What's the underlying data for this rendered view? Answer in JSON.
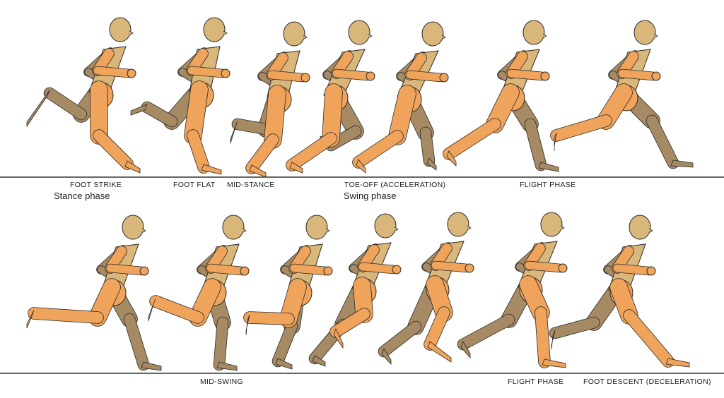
{
  "row1": {
    "labels": [
      "FOOT STRIKE",
      "FOOT FLAT",
      "MID-STANCE",
      "TOE-OFF (ACCELERATION)",
      "FLIGHT PHASE"
    ],
    "phases": [
      "Stance phase",
      "Swing phase"
    ]
  },
  "row2": {
    "labels": [
      "MID-SWING",
      "FLIGHT PHASE",
      "FOOT DESCENT (DECELERATION)"
    ]
  },
  "colors": {
    "near_limb": "#f0a35a",
    "far_limb": "#a58a63",
    "torso_head": "#d9b77b",
    "outline": "#2a2a2a",
    "ground": "#333333"
  }
}
